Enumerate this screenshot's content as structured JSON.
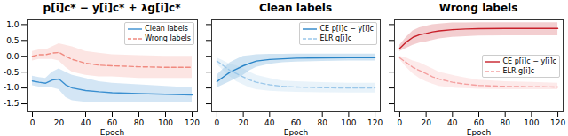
{
  "chart_data": [
    {
      "type": "line",
      "title": "p[i]c* − y[i]c* + λg[i]c*",
      "xlabel": "Epoch",
      "xlim": [
        -4,
        124
      ],
      "xticks": [
        0,
        20,
        40,
        60,
        80,
        100,
        120
      ],
      "ylim": [
        -1.75,
        1.15
      ],
      "yticks": [
        {
          "value": -1.5,
          "label": "-1.5"
        },
        {
          "value": -1,
          "label": "-1.0"
        },
        {
          "value": -0.5,
          "label": "-0.5"
        },
        {
          "value": 0,
          "label": "0.0"
        },
        {
          "value": 0.5,
          "label": "0.5"
        },
        {
          "value": 1,
          "label": "1.0"
        }
      ],
      "legend": "upper right",
      "x": [
        0,
        5,
        10,
        15,
        20,
        25,
        30,
        40,
        50,
        60,
        80,
        100,
        120
      ],
      "series": [
        {
          "name": "Clean labels",
          "color": "#3a8fd0",
          "line_style": "solid",
          "values": [
            -0.78,
            -0.82,
            -0.85,
            -0.75,
            -0.72,
            -0.9,
            -1.0,
            -1.08,
            -1.12,
            -1.15,
            -1.18,
            -1.2,
            -1.22
          ],
          "lower": [
            -0.93,
            -0.97,
            -1.0,
            -1.0,
            -1.05,
            -1.3,
            -1.4,
            -1.45,
            -1.45,
            -1.45,
            -1.45,
            -1.45,
            -1.45
          ],
          "upper": [
            -0.63,
            -0.67,
            -0.7,
            -0.5,
            -0.4,
            -0.5,
            -0.6,
            -0.7,
            -0.8,
            -0.85,
            -0.9,
            -0.95,
            -1.0
          ]
        },
        {
          "name": "Wrong labels",
          "color": "#f08a80",
          "line_style": "dashed",
          "values": [
            0.0,
            0.05,
            0.05,
            0.1,
            0.12,
            0.0,
            -0.1,
            -0.22,
            -0.28,
            -0.3,
            -0.33,
            -0.35,
            -0.35
          ],
          "lower": [
            -0.15,
            -0.1,
            -0.1,
            -0.1,
            -0.15,
            -0.35,
            -0.5,
            -0.6,
            -0.65,
            -0.65,
            -0.7,
            -0.7,
            -0.7
          ],
          "upper": [
            0.15,
            0.2,
            0.2,
            0.3,
            0.4,
            0.35,
            0.3,
            0.15,
            0.1,
            0.05,
            0.02,
            0.0,
            0.0
          ]
        }
      ]
    },
    {
      "type": "line",
      "title": "Clean labels",
      "xlabel": "Epoch",
      "xlim": [
        -4,
        124
      ],
      "xticks": [
        0,
        20,
        40,
        60,
        80,
        100,
        120
      ],
      "ylim": [
        -1.75,
        1.15
      ],
      "yticks": [
        -1.5,
        -1,
        -0.5,
        0,
        0.5,
        1
      ],
      "tick_labels": "x",
      "legend": "upper right",
      "x": [
        0,
        5,
        10,
        15,
        20,
        25,
        30,
        40,
        50,
        60,
        80,
        100,
        120
      ],
      "series": [
        {
          "name": "CE p[i]c − y[i]c",
          "color": "#2a85c8",
          "line_style": "solid",
          "values": [
            -0.8,
            -0.65,
            -0.5,
            -0.4,
            -0.3,
            -0.22,
            -0.15,
            -0.1,
            -0.08,
            -0.06,
            -0.05,
            -0.04,
            -0.04
          ],
          "lower": [
            -1.0,
            -0.9,
            -0.8,
            -0.7,
            -0.6,
            -0.45,
            -0.35,
            -0.25,
            -0.2,
            -0.18,
            -0.16,
            -0.15,
            -0.15
          ],
          "upper": [
            -0.6,
            -0.4,
            -0.2,
            -0.1,
            0.0,
            0.02,
            0.05,
            0.06,
            0.06,
            0.07,
            0.07,
            0.07,
            0.07
          ]
        },
        {
          "name": "ELR g[i]c",
          "color": "#9cc8ea",
          "line_style": "dashed",
          "values": [
            -0.15,
            -0.3,
            -0.45,
            -0.55,
            -0.65,
            -0.75,
            -0.82,
            -0.9,
            -0.95,
            -0.97,
            -0.99,
            -1.0,
            -1.0
          ],
          "lower": [
            -0.25,
            -0.45,
            -0.65,
            -0.8,
            -0.9,
            -1.0,
            -1.05,
            -1.1,
            -1.12,
            -1.14,
            -1.15,
            -1.16,
            -1.16
          ],
          "upper": [
            -0.05,
            -0.15,
            -0.25,
            -0.3,
            -0.4,
            -0.5,
            -0.6,
            -0.7,
            -0.78,
            -0.8,
            -0.83,
            -0.85,
            -0.85
          ]
        }
      ]
    },
    {
      "type": "line",
      "title": "Wrong labels",
      "xlabel": "Epoch",
      "xlim": [
        -4,
        124
      ],
      "xticks": [
        0,
        20,
        40,
        60,
        80,
        100,
        120
      ],
      "ylim": [
        -1.75,
        1.15
      ],
      "yticks": [
        -1.5,
        -1,
        -0.5,
        0,
        0.5,
        1
      ],
      "tick_labels": "x",
      "legend": "center right",
      "x": [
        0,
        5,
        10,
        15,
        20,
        25,
        30,
        40,
        50,
        60,
        80,
        100,
        120
      ],
      "series": [
        {
          "name": "CE p[i]c − y[i]c",
          "color": "#c8202a",
          "line_style": "solid",
          "values": [
            0.25,
            0.45,
            0.6,
            0.68,
            0.72,
            0.77,
            0.8,
            0.84,
            0.86,
            0.87,
            0.88,
            0.88,
            0.88
          ],
          "lower": [
            0.15,
            0.25,
            0.35,
            0.42,
            0.45,
            0.5,
            0.55,
            0.6,
            0.62,
            0.64,
            0.65,
            0.65,
            0.65
          ],
          "upper": [
            0.35,
            0.6,
            0.8,
            0.9,
            0.95,
            1.0,
            1.02,
            1.05,
            1.05,
            1.06,
            1.06,
            1.06,
            1.06
          ]
        },
        {
          "name": "ELR g[i]c",
          "color": "#f4a0a0",
          "line_style": "dashed",
          "values": [
            -0.05,
            -0.2,
            -0.35,
            -0.45,
            -0.55,
            -0.65,
            -0.72,
            -0.82,
            -0.88,
            -0.92,
            -0.95,
            -0.96,
            -0.97
          ],
          "lower": [
            -0.1,
            -0.35,
            -0.55,
            -0.7,
            -0.8,
            -0.88,
            -0.95,
            -1.0,
            -1.02,
            -1.04,
            -1.05,
            -1.05,
            -1.05
          ],
          "upper": [
            0.0,
            -0.05,
            -0.15,
            -0.2,
            -0.3,
            -0.4,
            -0.5,
            -0.6,
            -0.68,
            -0.75,
            -0.8,
            -0.82,
            -0.85
          ]
        }
      ]
    }
  ]
}
